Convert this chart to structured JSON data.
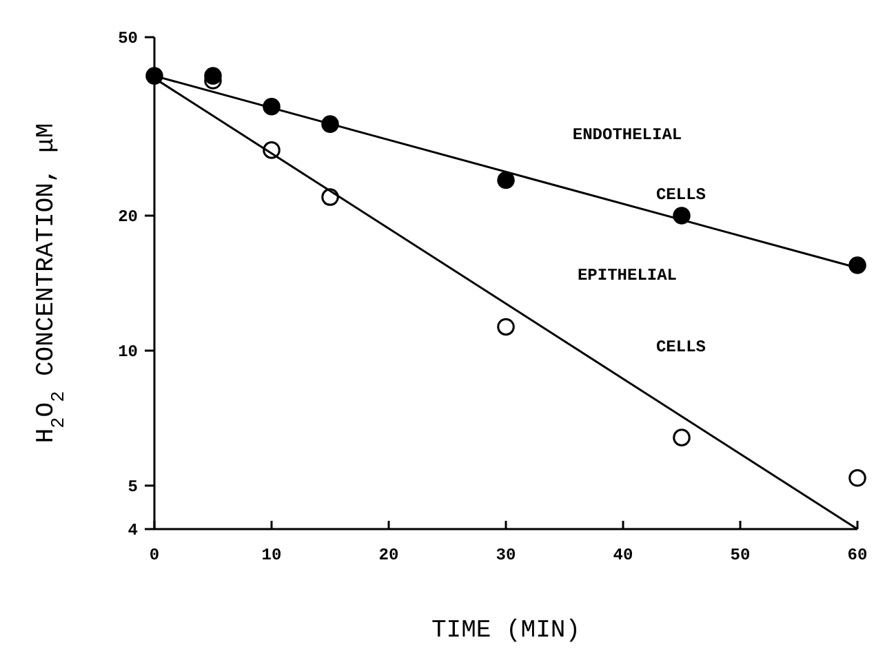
{
  "chart_data": {
    "type": "scatter",
    "xlabel": "TIME (MIN)",
    "ylabel": "H$_{2}$O$_{2}$ CONCENTRATION, μM",
    "log": "y",
    "xlim": [
      0,
      60
    ],
    "ylim": [
      4,
      50
    ],
    "xticks": [
      0,
      10,
      20,
      30,
      40,
      50,
      60
    ],
    "yticks": [
      4,
      5,
      10,
      20,
      50
    ],
    "grid": false,
    "marker": "circle",
    "series": [
      {
        "color": "#ffffff",
        "x": [
          5,
          10,
          15,
          30,
          45,
          60
        ],
        "values": [
          40,
          28,
          22,
          11.3,
          6.4,
          5.2
        ]
      },
      {
        "color": "#000000",
        "x": [
          0,
          5,
          10,
          15,
          30,
          45,
          60
        ],
        "values": [
          41,
          41,
          35,
          32,
          24,
          20,
          15.5
        ]
      },
      {
        "name": "ENDOTHELIAL CELLS",
        "type": "line",
        "color": "#000000",
        "marker": "none",
        "x": [
          0,
          60
        ],
        "values": [
          41,
          15.3
        ]
      },
      {
        "name": "EPITHELIAL CELLS",
        "type": "line",
        "color": "#000000",
        "marker": "none",
        "x": [
          0,
          60
        ],
        "values": [
          40.5,
          4
        ]
      }
    ]
  }
}
